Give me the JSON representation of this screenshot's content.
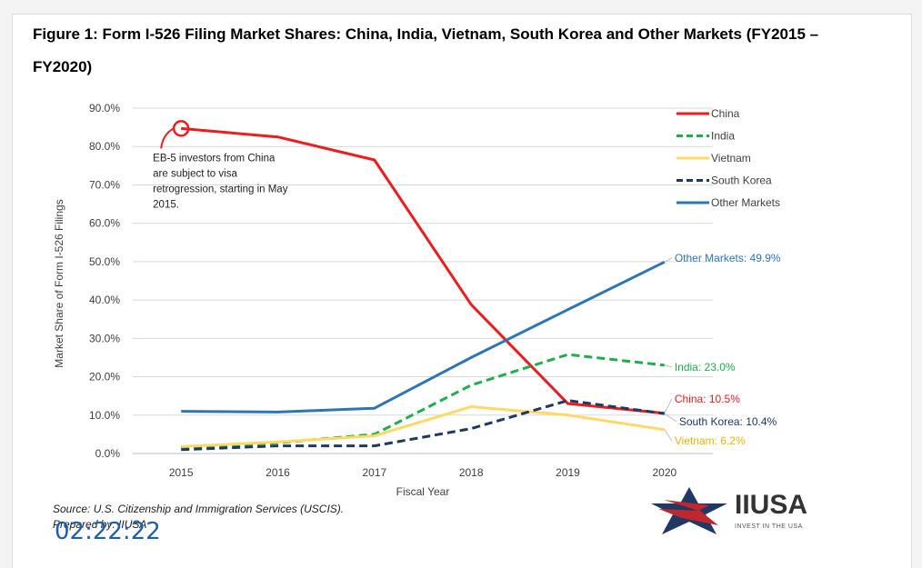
{
  "figure": {
    "title": "Figure 1: Form I-526 Filing Market Shares: China, India, Vietnam, South Korea and Other Markets (FY2015 – FY2020)",
    "source": "Source: U.S. Citizenship and Immigration Services (USCIS).",
    "prepared_by": "Prepared by: IIUSA",
    "timestamp": "02:22:22",
    "logo_text": "IIUSA",
    "logo_tagline": "INVEST IN THE USA"
  },
  "chart_data": {
    "type": "line",
    "xlabel": "Fiscal Year",
    "ylabel": "Market Share of Form I-526 Filings",
    "ylim": [
      0,
      90
    ],
    "yticks": [
      "0.0%",
      "10.0%",
      "20.0%",
      "30.0%",
      "40.0%",
      "50.0%",
      "60.0%",
      "70.0%",
      "80.0%",
      "90.0%"
    ],
    "x": [
      "2015",
      "2016",
      "2017",
      "2018",
      "2019",
      "2020"
    ],
    "grid": true,
    "legend_position": "top-right",
    "series": [
      {
        "name": "China",
        "color": "#ee1c1c",
        "dash": "solid",
        "values": [
          84.7,
          82.5,
          76.5,
          38.8,
          13.0,
          10.5
        ]
      },
      {
        "name": "India",
        "color": "#1fae4b",
        "dash": "dashed",
        "values": [
          1.5,
          2.8,
          5.0,
          17.8,
          25.8,
          23.0
        ]
      },
      {
        "name": "Vietnam",
        "color": "#ffd966",
        "dash": "solid",
        "values": [
          1.8,
          3.0,
          4.6,
          12.2,
          10.0,
          6.2
        ]
      },
      {
        "name": "South Korea",
        "color": "#1f3864",
        "dash": "dashed",
        "values": [
          1.0,
          2.0,
          2.0,
          6.5,
          13.8,
          10.4
        ]
      },
      {
        "name": "Other Markets",
        "color": "#2e75b6",
        "dash": "solid",
        "values": [
          11.0,
          10.8,
          11.8,
          25.0,
          37.5,
          49.9
        ]
      }
    ],
    "end_labels": [
      {
        "text": "Other Markets: 49.9%",
        "color": "#2e75b6",
        "value": 49.9
      },
      {
        "text": "India: 23.0%",
        "color": "#1fae4b",
        "value": 23.0
      },
      {
        "text": "China: 10.5%",
        "color": "#ee1c1c",
        "value": 10.5
      },
      {
        "text": "South  Korea: 10.4%",
        "color": "#1f3864",
        "value": 10.4
      },
      {
        "text": "Vietnam: 6.2%",
        "color": "#e8b50a",
        "value": 6.2
      }
    ],
    "annotation": {
      "lines": [
        "EB-5 investors from  China",
        "are subject to visa",
        "retrogression, starting in May",
        "2015."
      ],
      "series": "China",
      "x": "2015"
    }
  }
}
